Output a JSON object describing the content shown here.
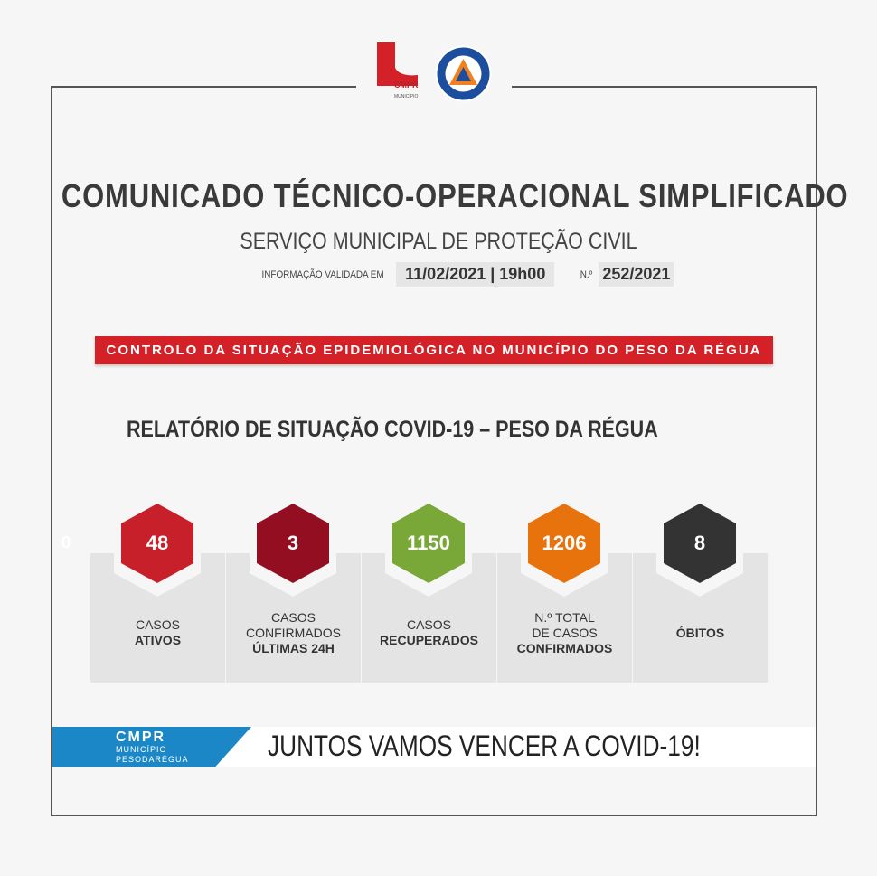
{
  "header": {
    "logo_municipio": "CMPR MUNICÍPIO PESODARÉGUA",
    "logo_protecao": "PROTECÇÃO CIVIL PESO DA RÉGUA",
    "title": "COMUNICADO TÉCNICO-OPERACIONAL SIMPLIFICADO",
    "subtitle": "SERVIÇO MUNICIPAL DE PROTEÇÃO CIVIL",
    "info_label": "INFORMAÇÃO VALIDADA EM",
    "date": "11/02/2021 | 19h00",
    "number_label": "N.º",
    "number": "252/2021"
  },
  "banner": "CONTROLO DA SITUAÇÃO EPIDEMIOLÓGICA NO MUNICÍPIO DO PESO DA RÉGUA",
  "report_title": "RELATÓRIO DE SITUAÇÃO COVID-19 – PESO DA RÉGUA",
  "stray_text": "0",
  "stats": [
    {
      "value": "48",
      "line1": "CASOS",
      "line2": "",
      "bold": "ATIVOS",
      "color": "#c8202a"
    },
    {
      "value": "3",
      "line1": "CASOS",
      "line2": "CONFIRMADOS",
      "bold": "ÚLTIMAS 24H",
      "color": "#940e22"
    },
    {
      "value": "1150",
      "line1": "CASOS",
      "line2": "",
      "bold": "RECUPERADOS",
      "color": "#7aa838"
    },
    {
      "value": "1206",
      "line1": "N.º TOTAL",
      "line2": "DE CASOS",
      "bold": "CONFIRMADOS",
      "color": "#e8720c"
    },
    {
      "value": "8",
      "line1": "",
      "line2": "",
      "bold": "ÓBITOS",
      "color": "#333333"
    }
  ],
  "footer": {
    "logo_big": "CMPR",
    "logo_l1": "MUNICÍPIO",
    "logo_l2": "PESODARÉGUA",
    "slogan": "JUNTOS VAMOS VENCER A COVID-19!",
    "accent": "#1b87c6"
  }
}
